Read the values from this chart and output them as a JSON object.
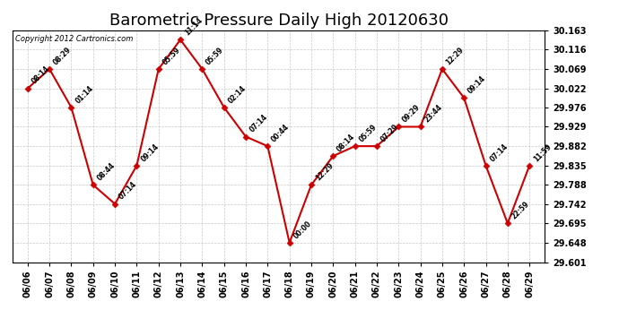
{
  "title": "Barometric Pressure Daily High 20120630",
  "copyright": "Copyright 2012 Cartronics.com",
  "ylim": [
    29.601,
    30.163
  ],
  "yticks": [
    29.601,
    29.648,
    29.695,
    29.742,
    29.788,
    29.835,
    29.882,
    29.929,
    29.976,
    30.022,
    30.069,
    30.116,
    30.163
  ],
  "background_color": "#ffffff",
  "line_color": "#cc0000",
  "marker_color": "#cc0000",
  "grid_color": "#c8c8c8",
  "title_fontsize": 13,
  "dates": [
    "06/06",
    "06/07",
    "06/08",
    "06/09",
    "06/10",
    "06/11",
    "06/12",
    "06/13",
    "06/14",
    "06/15",
    "06/16",
    "06/17",
    "06/18",
    "06/19",
    "06/20",
    "06/21",
    "06/22",
    "06/23",
    "06/24",
    "06/25",
    "06/26",
    "06/27",
    "06/28",
    "06/29"
  ],
  "values": [
    30.022,
    30.069,
    29.976,
    29.788,
    29.742,
    29.835,
    30.069,
    30.14,
    30.069,
    29.976,
    29.905,
    29.882,
    29.648,
    29.788,
    29.858,
    29.882,
    29.882,
    29.929,
    29.929,
    30.069,
    29.999,
    29.835,
    29.695,
    29.835
  ],
  "annotations": [
    "08:14",
    "08:29",
    "01:14",
    "08:44",
    "07:14",
    "09:14",
    "05:59",
    "11:14",
    "05:59",
    "02:14",
    "07:14",
    "00:44",
    "00:00",
    "12:29",
    "08:14",
    "05:59",
    "07:29",
    "09:29",
    "23:44",
    "12:29",
    "09:14",
    "07:14",
    "22:59",
    "11:59"
  ]
}
